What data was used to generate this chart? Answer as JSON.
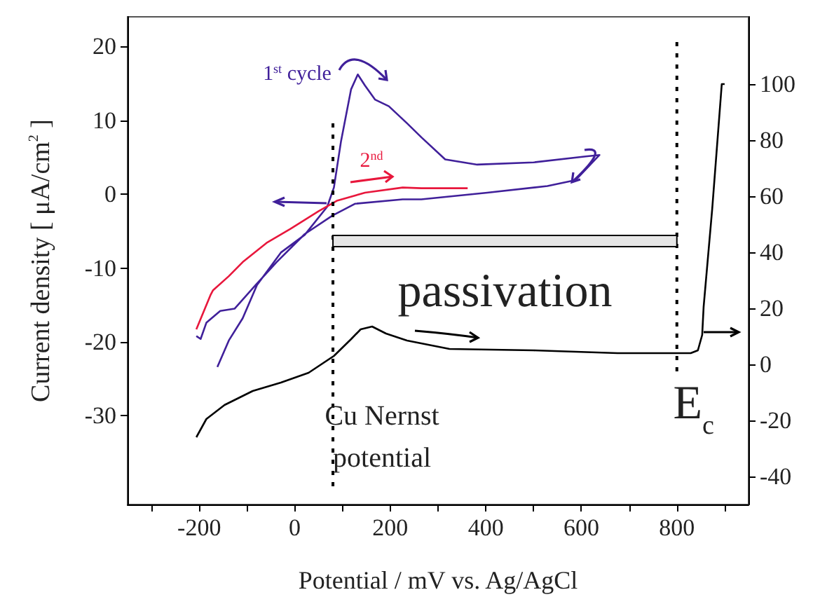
{
  "chart_data": {
    "type": "line",
    "xlabel": "Potential / mV vs. Ag/AgCl",
    "ylabel": "Current density [ μA/cm$^{2}$ ]",
    "xlim": [
      -350,
      950
    ],
    "xticks": [
      {
        "value": -300,
        "label": null
      },
      -200,
      {
        "value": -100,
        "label": null
      },
      0,
      {
        "value": 100,
        "label": null
      },
      200,
      {
        "value": 300,
        "label": null
      },
      400,
      {
        "value": 500,
        "label": null
      },
      600,
      {
        "value": 700,
        "label": null
      },
      800,
      {
        "value": 900,
        "label": null
      }
    ],
    "ylim": [
      -42,
      24
    ],
    "yticks": [
      -30,
      -20,
      -10,
      0,
      10,
      20
    ],
    "y2lim": [
      -50,
      124
    ],
    "y2ticks": [
      -40,
      -20,
      0,
      20,
      40,
      60,
      80,
      100
    ],
    "marker": "none",
    "grid": false,
    "series": [
      {
        "name": "1$^{st}$ cycle",
        "color": "#40209a",
        "x": [
          -162,
          -138,
          -109,
          -79,
          -29,
          21,
          68,
          82,
          97,
          118,
          132,
          147,
          168,
          197,
          235,
          265,
          315,
          382,
          500,
          609,
          638,
          588,
          529,
          403,
          265,
          226,
          126,
          79,
          21,
          -38,
          -82,
          -126,
          -156,
          -185,
          -197,
          -206
        ],
        "values": [
          -23.4,
          -19.8,
          -16.8,
          -12.3,
          -7.9,
          -5.5,
          -1.7,
          0.9,
          7.2,
          14.2,
          16.2,
          14.7,
          12.8,
          11.9,
          9.6,
          7.7,
          4.7,
          4.0,
          4.3,
          5.1,
          5.3,
          1.9,
          1.1,
          0.2,
          -0.7,
          -0.7,
          -1.3,
          -2.9,
          -5.4,
          -9.2,
          -12.3,
          -15.5,
          -15.8,
          -17.4,
          -19.6,
          -19.2
        ]
      },
      {
        "name": "2$^{nd}$",
        "color": "#e8173c",
        "x": [
          -206,
          -176,
          -171,
          -138,
          -109,
          -59,
          -9,
          50,
          88,
          147,
          226,
          265,
          362
        ],
        "values": [
          -18.3,
          -13.6,
          -13.0,
          -11.1,
          -9.2,
          -6.6,
          -4.7,
          -2.3,
          -0.9,
          0.2,
          0.9,
          0.8,
          0.8
        ]
      },
      {
        "color": "#000000",
        "axis": "y2",
        "x": [
          -206,
          -185,
          -147,
          -88,
          -29,
          29,
          82,
          118,
          138,
          162,
          191,
          235,
          324,
          500,
          676,
          829,
          844,
          853,
          856,
          874,
          894,
          900
        ],
        "values": [
          -26,
          -19.5,
          -14.5,
          -9.5,
          -6.5,
          -3,
          3,
          9,
          12.5,
          13.5,
          11,
          8.5,
          5.5,
          5,
          4,
          4,
          5,
          10.5,
          20.5,
          55.5,
          100,
          100
        ]
      }
    ],
    "ref_lines": [
      {
        "axis": "x",
        "value": 80,
        "label": "Cu Nernst\npotential",
        "line_style": "dotted"
      },
      {
        "axis": "x",
        "value": 800,
        "label": "E$_{c}$",
        "line_style": "dotted"
      }
    ],
    "annotations": [
      "passivation"
    ]
  }
}
